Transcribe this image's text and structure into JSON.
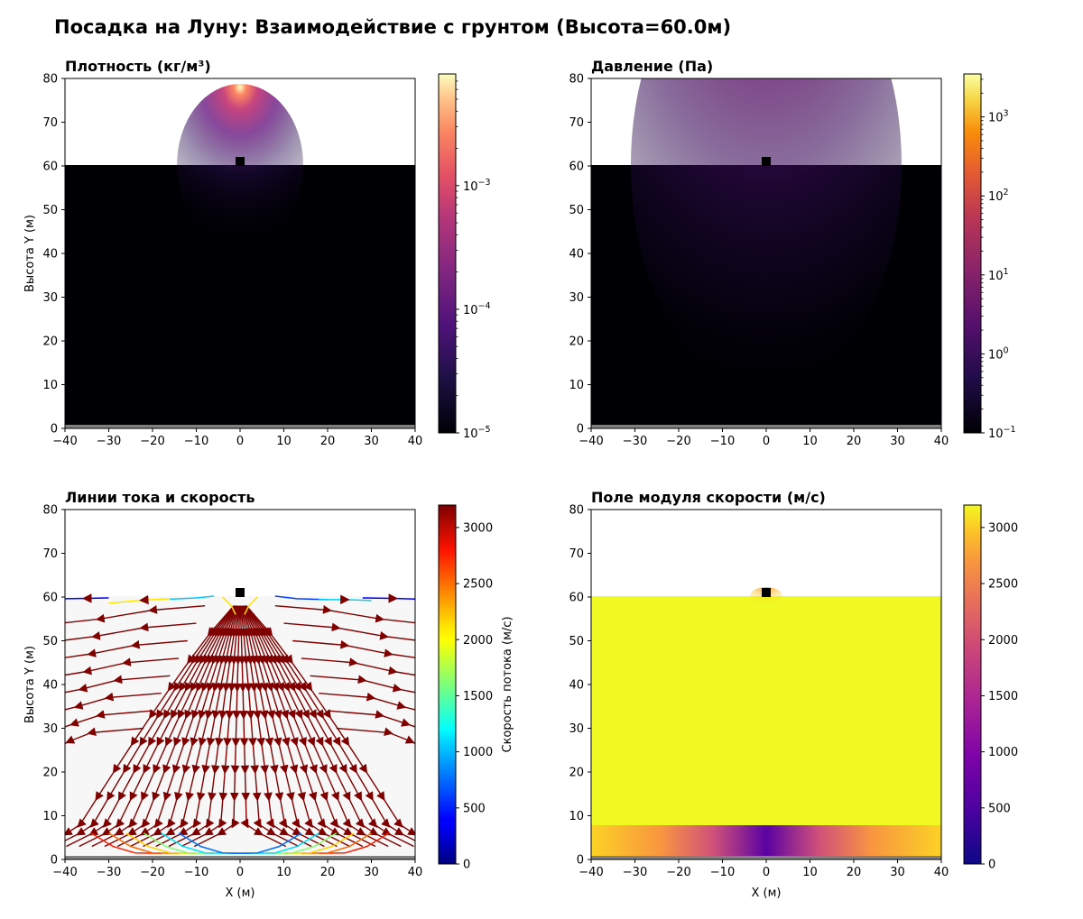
{
  "title": "Посадка на Луну: Взаимодействие с грунтом (Высота=60.0м)",
  "colors": {
    "background": "#ffffff",
    "lander": "#000000",
    "ground": "#808080",
    "streamline": "#800000"
  },
  "chart_data": [
    {
      "id": "density",
      "type": "heatmap",
      "title": "Плотность (кг/м³)",
      "xlabel": "",
      "ylabel": "Высота Y (м)",
      "xlim": [
        -40,
        40
      ],
      "ylim": [
        0,
        80
      ],
      "xticks": [
        "−40",
        "−30",
        "−20",
        "−10",
        "0",
        "10",
        "20",
        "30",
        "40"
      ],
      "yticks": [
        "0",
        "10",
        "20",
        "30",
        "40",
        "50",
        "60",
        "70",
        "80"
      ],
      "surface_height": 60.2,
      "lander": {
        "x": 0,
        "y": 61
      },
      "colormap": "magma",
      "colorbar": {
        "scale": "log",
        "range": [
          1e-05,
          0.008
        ],
        "ticks": [
          {
            "base": "10",
            "exp": "−5",
            "value": 1e-05
          },
          {
            "base": "10",
            "exp": "−4",
            "value": 0.0001
          },
          {
            "base": "10",
            "exp": "−3",
            "value": 0.001
          }
        ],
        "label": ""
      }
    },
    {
      "id": "pressure",
      "type": "heatmap",
      "title": "Давление (Па)",
      "xlabel": "",
      "ylabel": "",
      "xlim": [
        -40,
        40
      ],
      "ylim": [
        0,
        80
      ],
      "xticks": [
        "−40",
        "−30",
        "−20",
        "−10",
        "0",
        "10",
        "20",
        "30",
        "40"
      ],
      "yticks": [
        "0",
        "10",
        "20",
        "30",
        "40",
        "50",
        "60",
        "70",
        "80"
      ],
      "surface_height": 60.2,
      "lander": {
        "x": 0,
        "y": 61
      },
      "colormap": "inferno",
      "colorbar": {
        "scale": "log",
        "range": [
          0.1,
          3500
        ],
        "ticks": [
          {
            "base": "10",
            "exp": "−1",
            "value": 0.1
          },
          {
            "base": "10",
            "exp": "0",
            "value": 1
          },
          {
            "base": "10",
            "exp": "1",
            "value": 10
          },
          {
            "base": "10",
            "exp": "2",
            "value": 100
          },
          {
            "base": "10",
            "exp": "3",
            "value": 1000
          }
        ],
        "label": ""
      }
    },
    {
      "id": "streamlines",
      "type": "streamplot",
      "title": "Линии тока и скорость",
      "xlabel": "X (м)",
      "ylabel": "Высота Y (м)",
      "xlim": [
        -40,
        40
      ],
      "ylim": [
        0,
        80
      ],
      "xticks": [
        "−40",
        "−30",
        "−20",
        "−10",
        "0",
        "10",
        "20",
        "30",
        "40"
      ],
      "yticks": [
        "0",
        "10",
        "20",
        "30",
        "40",
        "50",
        "60",
        "70",
        "80"
      ],
      "surface_height": 60.2,
      "lander": {
        "x": 0,
        "y": 61
      },
      "colormap": "jet",
      "colorbar": {
        "scale": "linear",
        "range": [
          0,
          3200
        ],
        "ticks": [
          "0",
          "500",
          "1000",
          "1500",
          "2000",
          "2500",
          "3000"
        ],
        "label": "Скорость потока (м/с)"
      }
    },
    {
      "id": "velocity",
      "type": "heatmap",
      "title": "Поле модуля скорости (м/с)",
      "xlabel": "X (м)",
      "ylabel": "",
      "xlim": [
        -40,
        40
      ],
      "ylim": [
        0,
        80
      ],
      "xticks": [
        "−40",
        "−30",
        "−20",
        "−10",
        "0",
        "10",
        "20",
        "30",
        "40"
      ],
      "yticks": [
        "0",
        "10",
        "20",
        "30",
        "40",
        "50",
        "60",
        "70",
        "80"
      ],
      "surface_height": 60.2,
      "lander": {
        "x": 0,
        "y": 61
      },
      "colormap": "plasma",
      "colorbar": {
        "scale": "linear",
        "range": [
          0,
          3200
        ],
        "ticks": [
          "0",
          "500",
          "1000",
          "1500",
          "2000",
          "2500",
          "3000"
        ],
        "label": ""
      }
    }
  ]
}
